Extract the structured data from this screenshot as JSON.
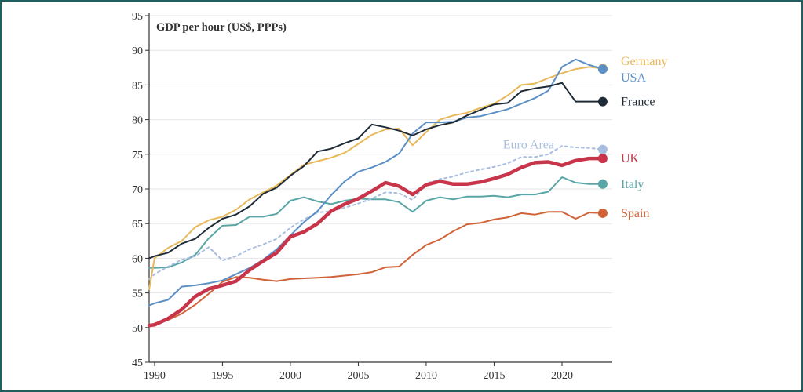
{
  "chart_data": {
    "type": "line",
    "title": "",
    "ylabel": "GDP per hour (US$, PPPs)",
    "xlabel": "",
    "xlim": [
      1989.6,
      2023.7
    ],
    "ylim": [
      45,
      95
    ],
    "x_ticks": [
      1990,
      1995,
      2000,
      2005,
      2010,
      2015,
      2020
    ],
    "y_ticks": [
      45,
      50,
      55,
      60,
      65,
      70,
      75,
      80,
      85,
      90,
      95
    ],
    "grid": "horizontal",
    "legend": "right-end labels",
    "x": [
      1989.6,
      1990,
      1991,
      1992,
      1993,
      1994,
      1995,
      1996,
      1997,
      1998,
      1999,
      2000,
      2001,
      2002,
      2003,
      2004,
      2005,
      2006,
      2007,
      2008,
      2009,
      2010,
      2011,
      2012,
      2013,
      2014,
      2015,
      2016,
      2017,
      2018,
      2019,
      2020,
      2021,
      2022,
      2023
    ],
    "series": [
      {
        "name": "Germany",
        "color": "#e8b95a",
        "dashed": false,
        "width": 2,
        "values": [
          55.5,
          60.0,
          61.5,
          62.5,
          64.5,
          65.5,
          66.0,
          67.0,
          68.5,
          69.5,
          70.5,
          72.0,
          73.5,
          74.0,
          74.5,
          75.2,
          76.5,
          77.8,
          78.6,
          78.7,
          76.3,
          78.2,
          80.0,
          80.6,
          81.0,
          81.7,
          82.3,
          83.5,
          85.0,
          85.2,
          86.0,
          86.7,
          87.3,
          87.6,
          87.4
        ]
      },
      {
        "name": "USA",
        "color": "#5b8fc6",
        "dashed": false,
        "width": 2,
        "values": [
          53.2,
          53.5,
          54.0,
          55.9,
          56.1,
          56.4,
          56.8,
          57.7,
          58.6,
          59.8,
          61.3,
          63.3,
          65.2,
          66.8,
          69.1,
          71.1,
          72.5,
          73.1,
          73.9,
          75.1,
          78.0,
          79.6,
          79.6,
          79.7,
          80.3,
          80.5,
          81.0,
          81.5,
          82.3,
          83.1,
          84.2,
          87.6,
          88.7,
          87.9,
          87.3
        ]
      },
      {
        "name": "France",
        "color": "#1f2b37",
        "dashed": false,
        "width": 2,
        "values": [
          60.0,
          60.3,
          60.8,
          62.1,
          62.8,
          64.4,
          65.7,
          66.3,
          67.5,
          69.3,
          70.2,
          71.9,
          73.3,
          75.4,
          75.8,
          76.6,
          77.3,
          79.3,
          78.9,
          78.4,
          77.7,
          78.6,
          79.2,
          79.6,
          80.6,
          81.4,
          82.2,
          82.4,
          84.1,
          84.5,
          84.8,
          85.3,
          82.6,
          82.6,
          82.6
        ]
      },
      {
        "name": "Euro Area",
        "color": "#a9bde0",
        "dashed": true,
        "width": 2,
        "values": [
          57.0,
          57.7,
          58.8,
          59.8,
          60.3,
          61.6,
          59.7,
          60.3,
          61.3,
          62.0,
          62.8,
          64.4,
          65.6,
          66.6,
          66.8,
          67.3,
          67.9,
          68.6,
          69.5,
          69.4,
          68.4,
          70.8,
          71.4,
          71.8,
          72.4,
          72.8,
          73.2,
          73.7,
          74.6,
          74.6,
          75.0,
          76.2,
          76.0,
          75.9,
          75.7
        ]
      },
      {
        "name": "UK",
        "color": "#c8354a",
        "dashed": false,
        "width": 4.5,
        "values": [
          50.3,
          50.4,
          51.3,
          52.6,
          54.5,
          55.6,
          56.1,
          56.7,
          58.3,
          59.6,
          60.8,
          63.1,
          63.8,
          65.0,
          66.8,
          67.8,
          68.6,
          69.7,
          70.9,
          70.4,
          69.2,
          70.6,
          71.1,
          70.7,
          70.7,
          71.0,
          71.5,
          72.1,
          73.1,
          73.8,
          73.9,
          73.4,
          74.1,
          74.4,
          74.4
        ]
      },
      {
        "name": "Italy",
        "color": "#5aa5a5",
        "dashed": false,
        "width": 2,
        "values": [
          58.6,
          58.6,
          58.7,
          59.4,
          60.5,
          62.9,
          64.7,
          64.8,
          66.0,
          66.0,
          66.4,
          68.3,
          68.8,
          68.2,
          67.8,
          68.3,
          68.6,
          68.5,
          68.5,
          68.1,
          66.7,
          68.3,
          68.8,
          68.5,
          68.9,
          68.9,
          69.0,
          68.8,
          69.2,
          69.2,
          69.6,
          71.7,
          70.9,
          70.7,
          70.7
        ]
      },
      {
        "name": "Spain",
        "color": "#d06338",
        "dashed": false,
        "width": 2,
        "values": [
          50.3,
          50.6,
          51.1,
          52.0,
          53.3,
          54.9,
          56.6,
          57.3,
          57.2,
          56.9,
          56.7,
          57.0,
          57.1,
          57.2,
          57.3,
          57.5,
          57.7,
          58.0,
          58.7,
          58.8,
          60.5,
          61.9,
          62.7,
          63.9,
          64.9,
          65.1,
          65.6,
          65.9,
          66.5,
          66.3,
          66.7,
          66.7,
          65.7,
          66.6,
          66.5
        ]
      }
    ]
  }
}
